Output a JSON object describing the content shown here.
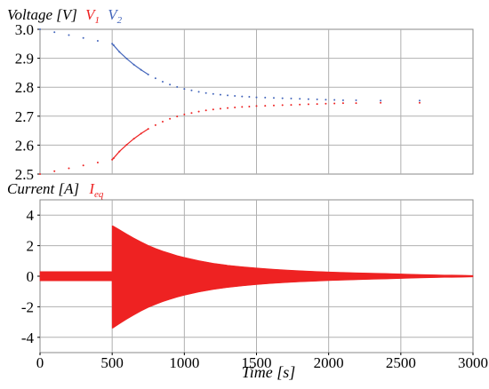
{
  "colors": {
    "v1": "#ee2222",
    "v2": "#4466bb",
    "ieq": "#ee2222",
    "axis_text": "#000000",
    "frame": "#888888",
    "grid": "#b0b0b0"
  },
  "chart_data": [
    {
      "type": "scatter",
      "label_main": "Voltage [V]",
      "series": [
        {
          "name": "V1",
          "name_base": "V",
          "name_sub": "1",
          "color": "#ee2222",
          "x": [
            0,
            100,
            200,
            300,
            400,
            500,
            510,
            550,
            600,
            650,
            700,
            750,
            800,
            850,
            900,
            950,
            1000,
            1050,
            1100,
            1150,
            1200,
            1250,
            1300,
            1350,
            1400,
            1450,
            1500,
            1560,
            1620,
            1680,
            1740,
            1800,
            1860,
            1920,
            1980,
            2040,
            2100,
            2190,
            2360,
            2630
          ],
          "y": [
            2.5,
            2.51,
            2.52,
            2.53,
            2.54,
            2.55,
            2.555,
            2.578,
            2.601,
            2.622,
            2.64,
            2.656,
            2.669,
            2.681,
            2.691,
            2.699,
            2.706,
            2.711,
            2.716,
            2.72,
            2.723,
            2.726,
            2.728,
            2.73,
            2.732,
            2.733,
            2.735,
            2.736,
            2.737,
            2.738,
            2.739,
            2.74,
            2.741,
            2.742,
            2.743,
            2.744,
            2.745,
            2.745,
            2.746,
            2.746
          ]
        },
        {
          "name": "V2",
          "name_base": "V",
          "name_sub": "2",
          "color": "#4466bb",
          "x": [
            0,
            100,
            200,
            300,
            400,
            500,
            510,
            550,
            600,
            650,
            700,
            750,
            800,
            850,
            900,
            950,
            1000,
            1050,
            1100,
            1150,
            1200,
            1250,
            1300,
            1350,
            1400,
            1450,
            1500,
            1560,
            1620,
            1680,
            1740,
            1800,
            1860,
            1920,
            1980,
            2040,
            2100,
            2190,
            2360,
            2630
          ],
          "y": [
            3.0,
            2.99,
            2.98,
            2.97,
            2.96,
            2.95,
            2.945,
            2.922,
            2.899,
            2.878,
            2.86,
            2.844,
            2.831,
            2.819,
            2.809,
            2.801,
            2.794,
            2.789,
            2.784,
            2.78,
            2.777,
            2.774,
            2.772,
            2.77,
            2.768,
            2.767,
            2.765,
            2.764,
            2.763,
            2.762,
            2.761,
            2.76,
            2.759,
            2.758,
            2.757,
            2.756,
            2.755,
            2.755,
            2.754,
            2.754
          ]
        }
      ],
      "xlim": [
        0,
        3000
      ],
      "ylim": [
        2.5,
        3.0
      ],
      "yticks": [
        "2.5",
        "2.6",
        "2.7",
        "2.8",
        "2.9",
        "3.0"
      ],
      "ytick_values": [
        2.5,
        2.6,
        2.7,
        2.8,
        2.9,
        3.0
      ],
      "xgrid": [
        0,
        500,
        1000,
        1500,
        2000,
        2500,
        3000
      ],
      "grid": true
    },
    {
      "type": "area",
      "label_main": "Current [A]",
      "series": [
        {
          "name": "Ieq",
          "name_base": "I",
          "name_sub": "eq",
          "color": "#ee2222",
          "x": [
            0,
            100,
            200,
            300,
            400,
            499,
            500,
            505,
            550,
            600,
            650,
            700,
            750,
            800,
            850,
            900,
            950,
            1000,
            1100,
            1200,
            1300,
            1400,
            1500,
            1600,
            1700,
            1800,
            1900,
            2000,
            2100,
            2200,
            2300,
            2400,
            2500,
            2600,
            2700,
            2800,
            2900,
            3000
          ],
          "upper": [
            0.3,
            0.3,
            0.3,
            0.3,
            0.3,
            0.3,
            3.3,
            3.3,
            3.05,
            2.77,
            2.5,
            2.25,
            2.02,
            1.82,
            1.65,
            1.5,
            1.35,
            1.23,
            1.02,
            0.85,
            0.72,
            0.62,
            0.54,
            0.47,
            0.41,
            0.36,
            0.32,
            0.28,
            0.25,
            0.22,
            0.2,
            0.18,
            0.15,
            0.12,
            0.1,
            0.08,
            0.07,
            0.05
          ],
          "lower": [
            -0.3,
            -0.3,
            -0.3,
            -0.3,
            -0.3,
            -0.3,
            -3.4,
            -3.4,
            -3.12,
            -2.82,
            -2.54,
            -2.28,
            -2.05,
            -1.85,
            -1.67,
            -1.52,
            -1.37,
            -1.25,
            -1.04,
            -0.87,
            -0.74,
            -0.64,
            -0.55,
            -0.48,
            -0.42,
            -0.37,
            -0.33,
            -0.29,
            -0.26,
            -0.23,
            -0.2,
            -0.18,
            -0.15,
            -0.12,
            -0.1,
            -0.08,
            -0.07,
            -0.05
          ]
        }
      ],
      "xlim": [
        0,
        3000
      ],
      "ylim": [
        -5,
        5
      ],
      "yticks": [
        "4",
        "2",
        "0",
        "-2",
        "-4"
      ],
      "ytick_values": [
        4,
        2,
        0,
        -2,
        -4
      ],
      "xgrid": [
        0,
        500,
        1000,
        1500,
        2000,
        2500,
        3000
      ],
      "xticks": [
        "0",
        "500",
        "1000",
        "1500",
        "2000",
        "2500",
        "3000"
      ],
      "xlabel": "Time [s]",
      "grid": true
    }
  ]
}
